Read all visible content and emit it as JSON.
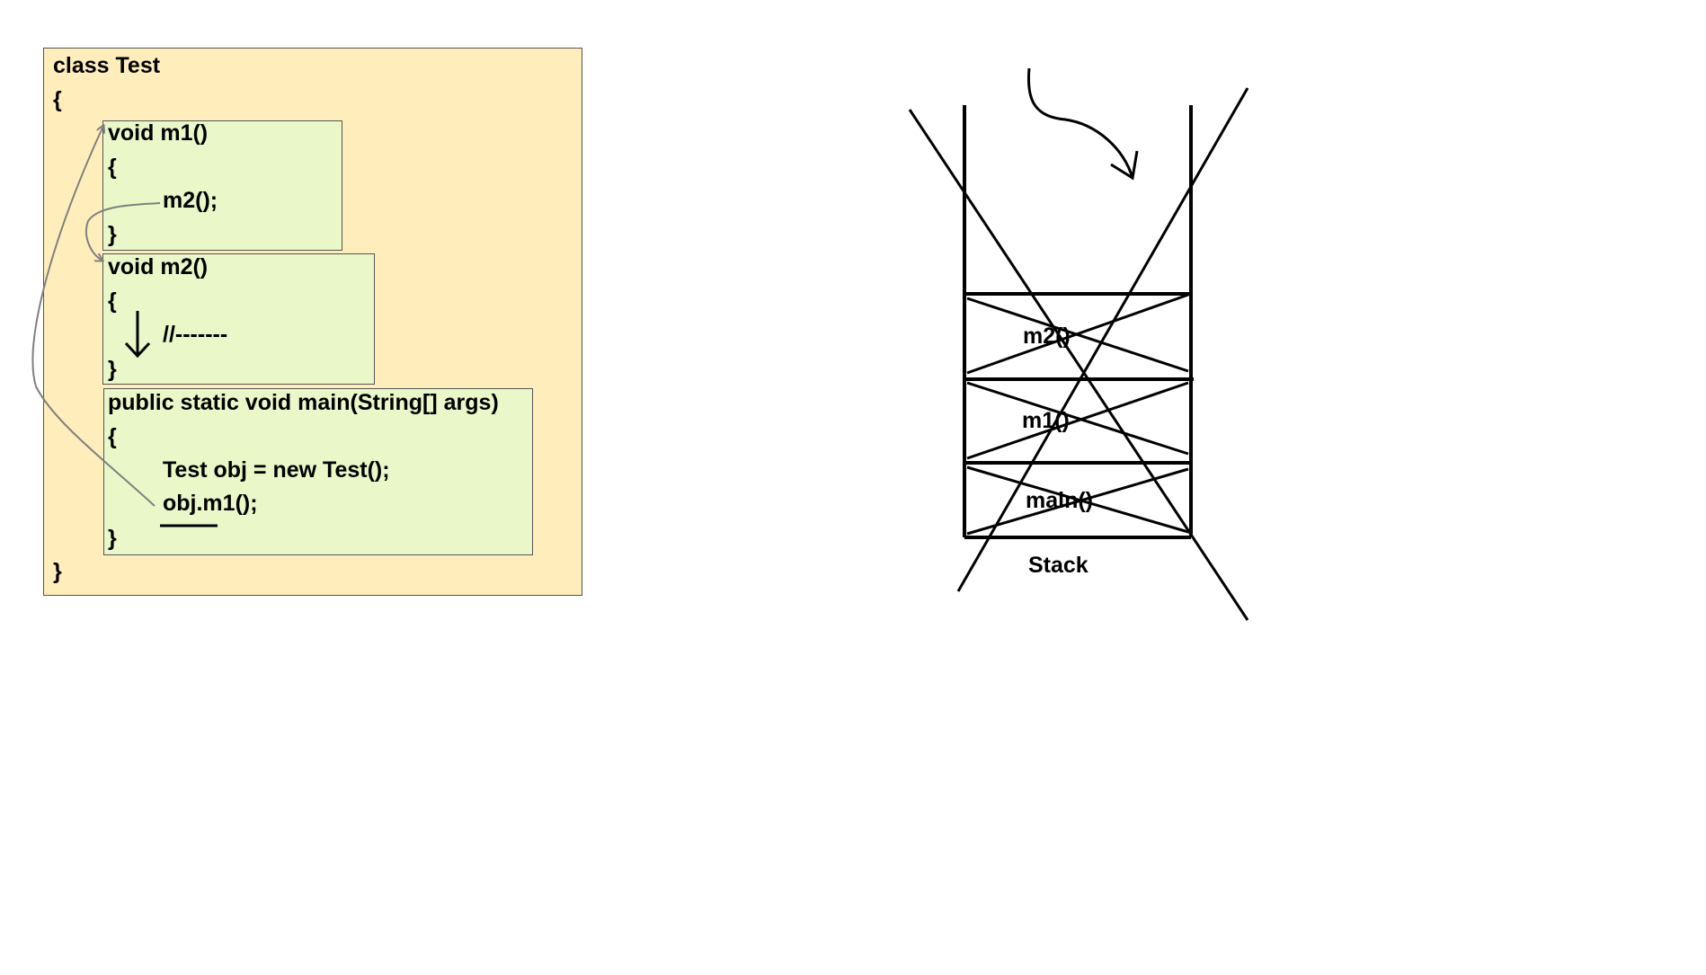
{
  "code": {
    "class_decl": "class Test",
    "class_open": "{",
    "class_close": "}",
    "m1": {
      "signature": "void m1()",
      "open": "{",
      "body": "m2();",
      "close": "}"
    },
    "m2": {
      "signature": "void m2()",
      "open": "{",
      "body": "//-------",
      "close": "}"
    },
    "main": {
      "signature": "public static void main(String[] args)",
      "open": "{",
      "line1": "Test obj = new Test();",
      "line2": "obj.m1();",
      "close": "}"
    }
  },
  "stack": {
    "label": "Stack",
    "frames": [
      "m2()",
      "m1()",
      "main()"
    ]
  },
  "colors": {
    "class_bg": "#ffeebb",
    "method_bg": "#eaf7c8",
    "arrow_gray": "#808080",
    "ink": "#000000"
  }
}
